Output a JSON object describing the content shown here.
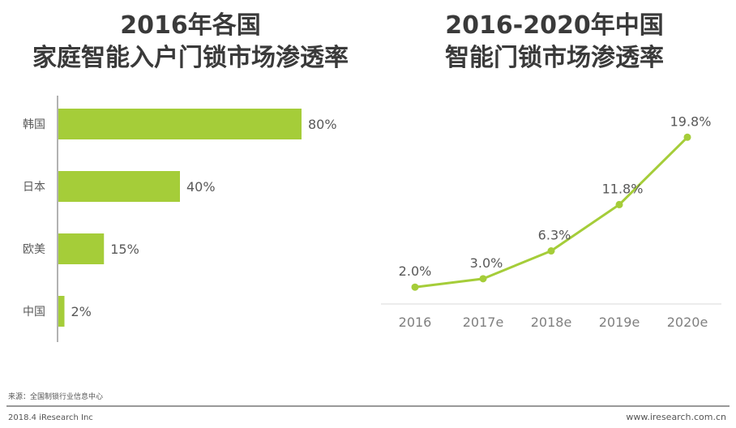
{
  "chart_data": [
    {
      "type": "bar",
      "orientation": "horizontal",
      "title_line1": "2016年各国",
      "title_line2": "家庭智能入户门锁市场渗透率",
      "categories": [
        "韩国",
        "日本",
        "欧美",
        "中国"
      ],
      "values": [
        80,
        40,
        15,
        2
      ],
      "labels": [
        "80%",
        "40%",
        "15%",
        "2%"
      ],
      "unit": "%",
      "color": "#a5cd39"
    },
    {
      "type": "line",
      "title_line1": "2016-2020年中国",
      "title_line2": "智能门锁市场渗透率",
      "categories": [
        "2016",
        "2017e",
        "2018e",
        "2019e",
        "2020e"
      ],
      "values": [
        2.0,
        3.0,
        6.3,
        11.8,
        19.8
      ],
      "labels": [
        "2.0%",
        "3.0%",
        "6.3%",
        "11.8%",
        "19.8%"
      ],
      "unit": "%",
      "color": "#a5cd39"
    }
  ],
  "footer": {
    "source": "来源：全国制锁行业信息中心",
    "left": "2018.4 iResearch Inc",
    "right": "www.iresearch.com.cn"
  }
}
